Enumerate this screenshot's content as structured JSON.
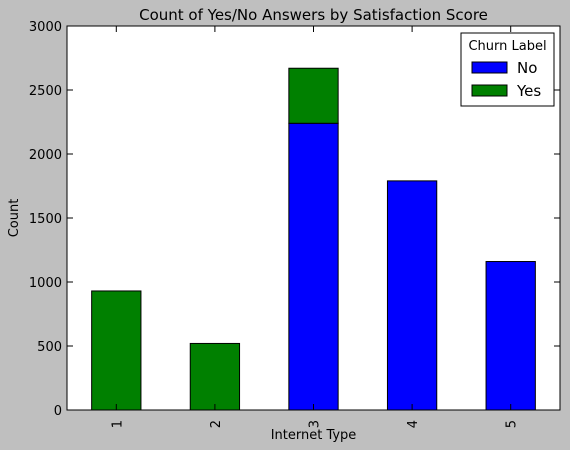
{
  "chart_data": {
    "type": "bar",
    "stacked": true,
    "title": "Count of Yes/No Answers by Satisfaction Score",
    "xlabel": "Internet Type",
    "ylabel": "Count",
    "categories": [
      "1",
      "2",
      "3",
      "4",
      "5"
    ],
    "ylim": [
      0,
      3000
    ],
    "yticks": [
      0,
      500,
      1000,
      1500,
      2000,
      2500,
      3000
    ],
    "grid": false,
    "legend": {
      "title": "Churn Label",
      "placement": "top-right"
    },
    "series": [
      {
        "name": "No",
        "color": "#0000ff",
        "values": [
          0,
          0,
          2240,
          1790,
          1160
        ]
      },
      {
        "name": "Yes",
        "color": "#008000",
        "values": [
          930,
          520,
          430,
          0,
          0
        ]
      }
    ]
  }
}
